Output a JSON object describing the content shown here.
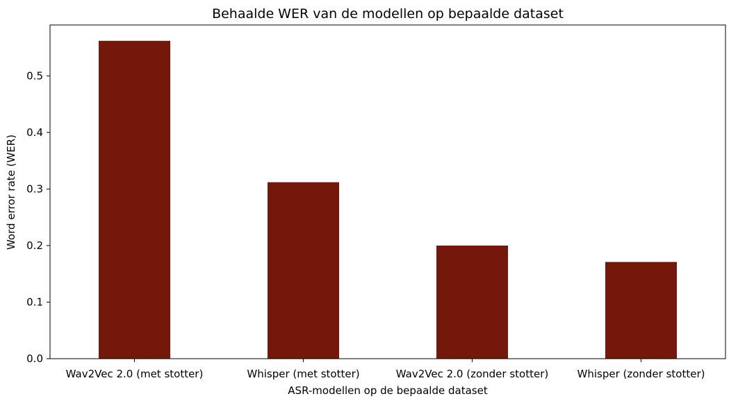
{
  "chart_data": {
    "type": "bar",
    "title": "Behaalde WER van de modellen op bepaalde dataset",
    "xlabel": "ASR-modellen op de bepaalde dataset",
    "ylabel": "Word error rate (WER)",
    "categories": [
      "Wav2Vec 2.0 (met stotter)",
      "Whisper (met stotter)",
      "Wav2Vec 2.0 (zonder stotter)",
      "Whisper (zonder stotter)"
    ],
    "values": [
      0.562,
      0.312,
      0.2,
      0.171
    ],
    "ylim": [
      0,
      0.59
    ],
    "yticks": [
      0.0,
      0.1,
      0.2,
      0.3,
      0.4,
      0.5
    ],
    "ytick_labels": [
      "0.0",
      "0.1",
      "0.2",
      "0.3",
      "0.4",
      "0.5"
    ],
    "bar_color": "#74180c",
    "grid": false,
    "legend": "none"
  }
}
